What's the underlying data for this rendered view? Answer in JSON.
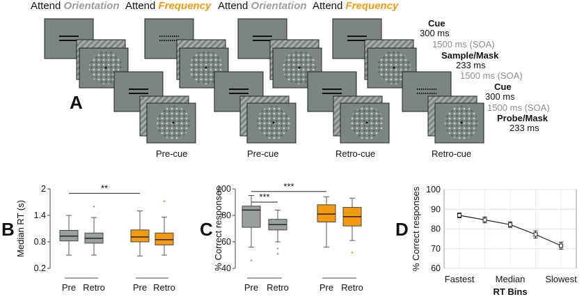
{
  "panel_a": {
    "letter": "A",
    "conditions": [
      {
        "attend_word": "Attend",
        "dimension": "Orientation",
        "cue_label": "Pre-cue"
      },
      {
        "attend_word": "Attend",
        "dimension": "Frequency",
        "cue_label": "Pre-cue"
      },
      {
        "attend_word": "Attend",
        "dimension": "Orientation",
        "cue_label": "Retro-cue"
      },
      {
        "attend_word": "Attend",
        "dimension": "Frequency",
        "cue_label": "Retro-cue"
      }
    ],
    "timeline": {
      "cue1_title": "Cue",
      "cue1_dur": "300 ms",
      "soa1": "1500 ms (SOA)",
      "sample_title": "Sample/Mask",
      "sample_dur": "233 ms",
      "soa2": "1500 ms (SOA)",
      "cue2_title": "Cue",
      "cue2_dur": "300 ms",
      "soa3": "1500 ms (SOA)",
      "probe_title": "Probe/Mask",
      "probe_dur": "233 ms"
    },
    "colors": {
      "orientation": "#9aa09e",
      "frequency": "#f39a10",
      "screen": "#7c8582"
    }
  },
  "chart_data": [
    {
      "panel": "B",
      "type": "box",
      "ylabel": "Median RT (s)",
      "ylim": [
        0.2,
        2
      ],
      "yticks": [
        "0.2",
        "0.8",
        "1.4",
        "2"
      ],
      "categories": [
        "Pre",
        "Retro",
        "Pre",
        "Retro"
      ],
      "groups": [
        "Orientation",
        "Orientation",
        "Frequency",
        "Frequency"
      ],
      "boxes": [
        {
          "min": 0.5,
          "q1": 0.82,
          "median": 0.93,
          "q3": 1.06,
          "max": 1.4,
          "outliers": []
        },
        {
          "min": 0.5,
          "q1": 0.77,
          "median": 0.88,
          "q3": 1.0,
          "max": 1.35,
          "outliers": [
            1.6
          ]
        },
        {
          "min": 0.48,
          "q1": 0.8,
          "median": 0.91,
          "q3": 1.07,
          "max": 1.5,
          "outliers": []
        },
        {
          "min": 0.5,
          "q1": 0.73,
          "median": 0.85,
          "q3": 1.0,
          "max": 1.36,
          "outliers": [
            1.72
          ]
        }
      ],
      "significance": [
        {
          "between": [
            0,
            2
          ],
          "label": "**",
          "y": 1.9
        }
      ]
    },
    {
      "panel": "C",
      "type": "box",
      "ylabel": "% Correct responses",
      "ylim": [
        40,
        100
      ],
      "yticks": [
        "40",
        "60",
        "80",
        "100"
      ],
      "categories": [
        "Pre",
        "Retro",
        "Pre",
        "Retro"
      ],
      "groups": [
        "Orientation",
        "Orientation",
        "Frequency",
        "Frequency"
      ],
      "boxes": [
        {
          "min": 56,
          "q1": 71,
          "median": 84,
          "q3": 87,
          "max": 95,
          "outliers": [
            46
          ]
        },
        {
          "min": 60,
          "q1": 69,
          "median": 73,
          "q3": 77,
          "max": 84,
          "outliers": [
            55,
            51
          ]
        },
        {
          "min": 56,
          "q1": 75,
          "median": 81,
          "q3": 88,
          "max": 94,
          "outliers": []
        },
        {
          "min": 61,
          "q1": 72,
          "median": 79,
          "q3": 86,
          "max": 93,
          "outliers": [
            52
          ]
        }
      ],
      "significance": [
        {
          "between": [
            0,
            1
          ],
          "label": "***",
          "y": 90
        },
        {
          "between": [
            0,
            2
          ],
          "label": "***",
          "y": 98
        }
      ]
    },
    {
      "panel": "D",
      "type": "line",
      "ylabel": "% Correct responses",
      "xlabel": "RT Bins",
      "ylim": [
        60,
        100
      ],
      "yticks": [
        "60",
        "70",
        "80",
        "90",
        "100"
      ],
      "x": [
        1,
        2,
        3,
        4,
        5
      ],
      "xtick_labels": [
        "Fastest",
        "Median",
        "Slowest"
      ],
      "xtick_positions": [
        1,
        3,
        5
      ],
      "values": [
        86.9,
        84.6,
        82.2,
        77.2,
        71.5
      ],
      "errors": [
        1.2,
        1.5,
        1.4,
        1.8,
        1.8
      ],
      "grid": true
    }
  ]
}
